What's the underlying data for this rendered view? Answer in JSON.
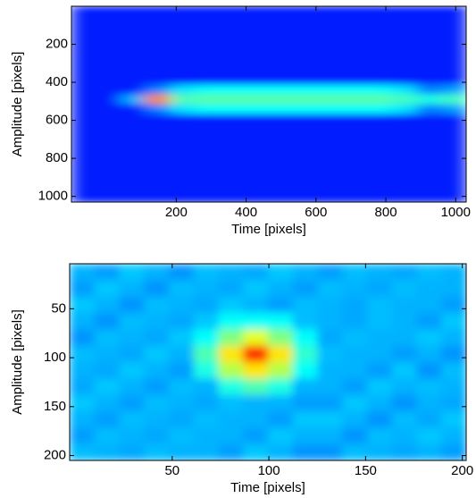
{
  "chart_data": [
    {
      "type": "image",
      "colormap": "jet",
      "clim": [
        0,
        1
      ],
      "xlabel": "Time [pixels]",
      "ylabel": "Amplitude [pixels]",
      "xlim": [
        -100,
        1030
      ],
      "ylim": [
        0,
        1030
      ],
      "y_reversed": true,
      "xticks": [
        200,
        400,
        600,
        800,
        1000
      ],
      "yticks": [
        200,
        400,
        600,
        800,
        1000
      ],
      "z": [
        [
          0.15,
          0.15,
          0.15,
          0.15,
          0.15,
          0.15,
          0.15,
          0.15,
          0.15,
          0.15,
          0.15,
          0.15,
          0.15,
          0.15,
          0.15,
          0.15
        ],
        [
          0.15,
          0.15,
          0.15,
          0.15,
          0.15,
          0.15,
          0.15,
          0.15,
          0.15,
          0.15,
          0.15,
          0.15,
          0.15,
          0.15,
          0.15,
          0.15
        ],
        [
          0.15,
          0.15,
          0.15,
          0.15,
          0.15,
          0.15,
          0.15,
          0.15,
          0.15,
          0.15,
          0.15,
          0.15,
          0.15,
          0.15,
          0.15,
          0.15
        ],
        [
          0.15,
          0.15,
          0.15,
          0.15,
          0.15,
          0.15,
          0.15,
          0.15,
          0.15,
          0.15,
          0.15,
          0.15,
          0.15,
          0.15,
          0.15,
          0.15
        ],
        [
          0.15,
          0.15,
          0.15,
          0.15,
          0.15,
          0.15,
          0.15,
          0.15,
          0.15,
          0.15,
          0.15,
          0.15,
          0.15,
          0.15,
          0.15,
          0.15
        ],
        [
          0.15,
          0.15,
          0.15,
          0.15,
          0.15,
          0.15,
          0.15,
          0.15,
          0.15,
          0.15,
          0.15,
          0.15,
          0.15,
          0.15,
          0.15,
          0.15
        ],
        [
          0.15,
          0.15,
          0.15,
          0.15,
          0.15,
          0.15,
          0.15,
          0.15,
          0.15,
          0.15,
          0.15,
          0.15,
          0.15,
          0.15,
          0.15,
          0.15
        ],
        [
          0.15,
          0.15,
          0.15,
          0.15,
          0.15,
          0.15,
          0.15,
          0.15,
          0.15,
          0.15,
          0.15,
          0.15,
          0.15,
          0.15,
          0.15,
          0.15
        ],
        [
          0.15,
          0.15,
          0.15,
          0.25,
          0.35,
          0.38,
          0.38,
          0.38,
          0.38,
          0.38,
          0.38,
          0.38,
          0.38,
          0.35,
          0.25,
          0.28
        ],
        [
          0.15,
          0.15,
          0.3,
          0.75,
          0.45,
          0.46,
          0.46,
          0.46,
          0.46,
          0.46,
          0.46,
          0.46,
          0.46,
          0.44,
          0.4,
          0.44
        ],
        [
          0.15,
          0.15,
          0.15,
          0.25,
          0.35,
          0.38,
          0.38,
          0.38,
          0.38,
          0.38,
          0.38,
          0.38,
          0.38,
          0.35,
          0.25,
          0.28
        ],
        [
          0.15,
          0.15,
          0.15,
          0.15,
          0.15,
          0.15,
          0.15,
          0.15,
          0.15,
          0.15,
          0.15,
          0.15,
          0.15,
          0.15,
          0.15,
          0.15
        ],
        [
          0.15,
          0.15,
          0.15,
          0.15,
          0.15,
          0.15,
          0.15,
          0.15,
          0.15,
          0.15,
          0.15,
          0.15,
          0.15,
          0.15,
          0.15,
          0.15
        ],
        [
          0.15,
          0.15,
          0.15,
          0.15,
          0.15,
          0.15,
          0.15,
          0.15,
          0.15,
          0.15,
          0.15,
          0.15,
          0.15,
          0.15,
          0.15,
          0.15
        ],
        [
          0.15,
          0.15,
          0.15,
          0.15,
          0.15,
          0.15,
          0.15,
          0.15,
          0.15,
          0.15,
          0.15,
          0.15,
          0.15,
          0.15,
          0.15,
          0.15
        ],
        [
          0.15,
          0.15,
          0.15,
          0.15,
          0.15,
          0.15,
          0.15,
          0.15,
          0.15,
          0.15,
          0.15,
          0.15,
          0.15,
          0.15,
          0.15,
          0.15
        ],
        [
          0.15,
          0.15,
          0.15,
          0.15,
          0.15,
          0.15,
          0.15,
          0.15,
          0.15,
          0.15,
          0.15,
          0.15,
          0.15,
          0.15,
          0.15,
          0.15
        ],
        [
          0.15,
          0.15,
          0.15,
          0.15,
          0.15,
          0.15,
          0.15,
          0.15,
          0.15,
          0.15,
          0.15,
          0.15,
          0.15,
          0.15,
          0.15,
          0.15
        ],
        [
          0.15,
          0.15,
          0.15,
          0.15,
          0.15,
          0.15,
          0.15,
          0.15,
          0.15,
          0.15,
          0.15,
          0.15,
          0.15,
          0.15,
          0.15,
          0.15
        ],
        [
          0.15,
          0.15,
          0.15,
          0.15,
          0.15,
          0.15,
          0.15,
          0.15,
          0.15,
          0.15,
          0.15,
          0.15,
          0.15,
          0.15,
          0.15,
          0.15
        ]
      ]
    },
    {
      "type": "image",
      "colormap": "jet",
      "clim": [
        0,
        1
      ],
      "xlabel": "Time [pixels]",
      "ylabel": "Amplitude [pixels]",
      "xlim": [
        -3,
        202
      ],
      "ylim": [
        4,
        205
      ],
      "y_reversed": true,
      "xticks": [
        50,
        100,
        150,
        200
      ],
      "yticks": [
        50,
        100,
        150,
        200
      ],
      "z": [
        [
          0.3,
          0.28,
          0.32,
          0.3,
          0.27,
          0.31,
          0.3,
          0.29,
          0.32,
          0.3,
          0.28,
          0.31,
          0.3,
          0.29,
          0.31,
          0.3
        ],
        [
          0.28,
          0.32,
          0.3,
          0.27,
          0.31,
          0.3,
          0.29,
          0.32,
          0.3,
          0.28,
          0.31,
          0.3,
          0.29,
          0.31,
          0.3,
          0.3
        ],
        [
          0.32,
          0.3,
          0.27,
          0.31,
          0.3,
          0.29,
          0.32,
          0.3,
          0.28,
          0.31,
          0.3,
          0.29,
          0.31,
          0.3,
          0.3,
          0.28
        ],
        [
          0.3,
          0.27,
          0.31,
          0.3,
          0.29,
          0.32,
          0.38,
          0.38,
          0.38,
          0.31,
          0.3,
          0.29,
          0.31,
          0.3,
          0.28,
          0.32
        ],
        [
          0.27,
          0.31,
          0.3,
          0.29,
          0.32,
          0.38,
          0.5,
          0.6,
          0.5,
          0.38,
          0.29,
          0.31,
          0.3,
          0.3,
          0.32,
          0.3
        ],
        [
          0.31,
          0.3,
          0.29,
          0.32,
          0.3,
          0.45,
          0.65,
          0.85,
          0.65,
          0.42,
          0.31,
          0.3,
          0.3,
          0.28,
          0.3,
          0.27
        ],
        [
          0.3,
          0.29,
          0.32,
          0.3,
          0.28,
          0.4,
          0.55,
          0.65,
          0.55,
          0.38,
          0.3,
          0.3,
          0.28,
          0.32,
          0.27,
          0.31
        ],
        [
          0.29,
          0.32,
          0.3,
          0.28,
          0.31,
          0.3,
          0.4,
          0.45,
          0.4,
          0.3,
          0.3,
          0.28,
          0.32,
          0.3,
          0.31,
          0.3
        ],
        [
          0.32,
          0.3,
          0.28,
          0.31,
          0.3,
          0.29,
          0.31,
          0.3,
          0.3,
          0.28,
          0.28,
          0.32,
          0.3,
          0.27,
          0.3,
          0.29
        ],
        [
          0.3,
          0.28,
          0.31,
          0.3,
          0.29,
          0.31,
          0.3,
          0.3,
          0.28,
          0.32,
          0.32,
          0.3,
          0.27,
          0.31,
          0.29,
          0.32
        ],
        [
          0.28,
          0.31,
          0.3,
          0.29,
          0.31,
          0.3,
          0.3,
          0.28,
          0.32,
          0.3,
          0.3,
          0.27,
          0.31,
          0.3,
          0.32,
          0.3
        ],
        [
          0.31,
          0.3,
          0.29,
          0.31,
          0.3,
          0.3,
          0.28,
          0.32,
          0.3,
          0.27,
          0.27,
          0.31,
          0.3,
          0.29,
          0.3,
          0.28
        ]
      ]
    }
  ]
}
